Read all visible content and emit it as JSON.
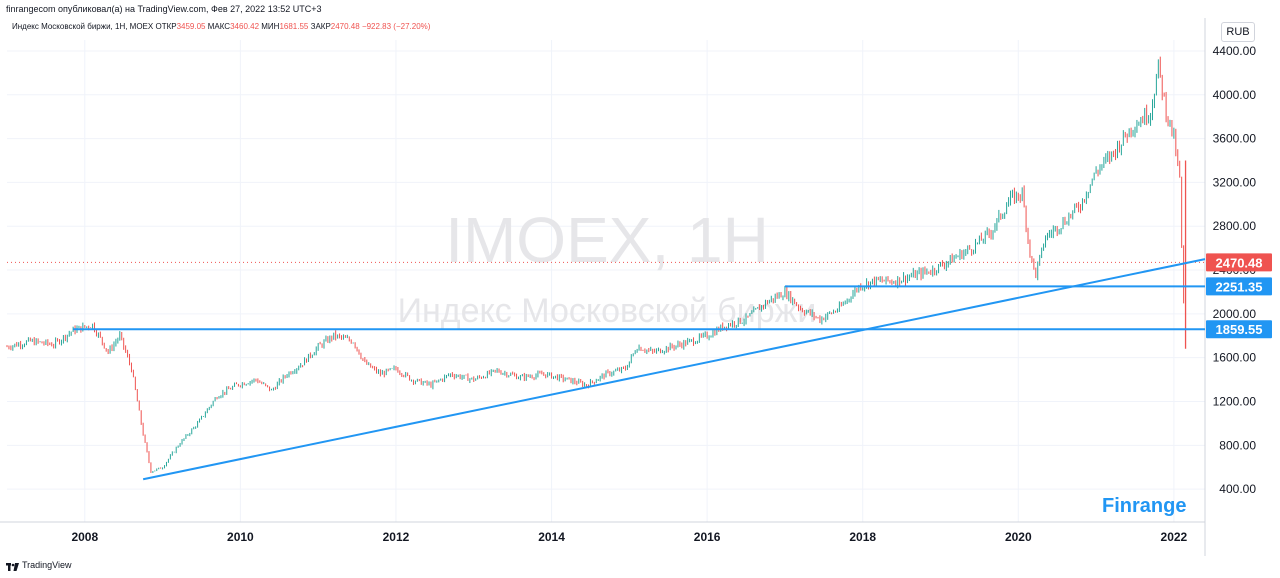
{
  "header": {
    "publish_line": "finrangecom опубликовал(а) на TradingView.com, Фев 27, 2022 13:52 UTC+3"
  },
  "legend": {
    "symbol": "Индекс Московской биржи, 1Н, MOEX",
    "open_label": "ОТКР",
    "open": "3459.05",
    "high_label": "МАКС",
    "high": "3460.42",
    "low_label": "МИН",
    "low": "1681.55",
    "close_label": "ЗАКР",
    "close": "2470.48",
    "change": "−922.83 (−27.20%)"
  },
  "currency": "RUB",
  "watermark": {
    "ticker": "IMOEX, 1H",
    "name": "Индекс Московской биржи"
  },
  "brand": "Finrange",
  "footer": {
    "logo": "TradingView"
  },
  "chart_data": {
    "type": "line",
    "style": "candlestick",
    "title": "",
    "xlabel": "",
    "ylabel": "",
    "ylim": [
      100,
      4500
    ],
    "xlim": [
      2007.0,
      2022.4
    ],
    "y_ticks": [
      400,
      800,
      1200,
      1600,
      2000,
      2400,
      2800,
      3200,
      3600,
      4000,
      4400
    ],
    "y_tick_labels": [
      "400.00",
      "800.00",
      "1200.00",
      "1600.00",
      "2000.00",
      "2400.00",
      "2800.00",
      "3200.00",
      "3600.00",
      "4000.00",
      "4400.00"
    ],
    "x_ticks": [
      2008,
      2010,
      2012,
      2014,
      2016,
      2018,
      2020,
      2022
    ],
    "x_tick_labels": [
      "2008",
      "2010",
      "2012",
      "2014",
      "2016",
      "2018",
      "2020",
      "2022"
    ],
    "grid": true,
    "series": [
      {
        "x": [
          2007.0,
          2007.3,
          2007.6,
          2007.85,
          2008.1,
          2008.3,
          2008.45,
          2008.6,
          2008.75,
          2008.85,
          2009.0,
          2009.2,
          2009.45,
          2009.7,
          2009.95,
          2010.2,
          2010.4,
          2010.6,
          2010.8,
          2011.0,
          2011.2,
          2011.45,
          2011.6,
          2011.8,
          2012.0,
          2012.2,
          2012.45,
          2012.7,
          2013.0,
          2013.3,
          2013.6,
          2013.9,
          2014.2,
          2014.45,
          2014.7,
          2014.95,
          2015.1,
          2015.3,
          2015.55,
          2015.8,
          2016.0,
          2016.25,
          2016.5,
          2016.75,
          2017.0,
          2017.2,
          2017.45,
          2017.7,
          2017.95,
          2018.15,
          2018.4,
          2018.65,
          2018.9,
          2019.15,
          2019.4,
          2019.65,
          2019.9,
          2020.05,
          2020.15,
          2020.22,
          2020.35,
          2020.6,
          2020.8,
          2021.0,
          2021.2,
          2021.45,
          2021.7,
          2021.8,
          2021.9,
          2022.0,
          2022.08,
          2022.12,
          2022.15
        ],
        "values": [
          1700,
          1750,
          1720,
          1850,
          1900,
          1650,
          1800,
          1500,
          900,
          560,
          600,
          800,
          1000,
          1250,
          1350,
          1400,
          1300,
          1450,
          1550,
          1700,
          1800,
          1750,
          1550,
          1450,
          1500,
          1400,
          1350,
          1450,
          1400,
          1480,
          1420,
          1450,
          1400,
          1350,
          1450,
          1500,
          1700,
          1650,
          1700,
          1750,
          1800,
          1900,
          1950,
          2100,
          2200,
          2050,
          1950,
          2050,
          2250,
          2300,
          2300,
          2350,
          2400,
          2500,
          2600,
          2750,
          3050,
          3100,
          2550,
          2350,
          2700,
          2850,
          3000,
          3300,
          3450,
          3700,
          3850,
          4250,
          3850,
          3600,
          3200,
          2000,
          2470
        ]
      }
    ],
    "levels": [
      {
        "value": 1859.55,
        "label": "1859.55",
        "color": "#2196f3"
      },
      {
        "value": 2251.35,
        "label": "2251.35",
        "color": "#2196f3"
      }
    ],
    "last_price": {
      "value": 2470.48,
      "label": "2470.48",
      "color": "#ef5350"
    },
    "trendline": {
      "x": [
        2008.75,
        2022.4
      ],
      "values": [
        490,
        2500
      ],
      "color": "#2196f3"
    },
    "candle_colors": {
      "up": "#26a69a",
      "down": "#ef5350"
    }
  }
}
